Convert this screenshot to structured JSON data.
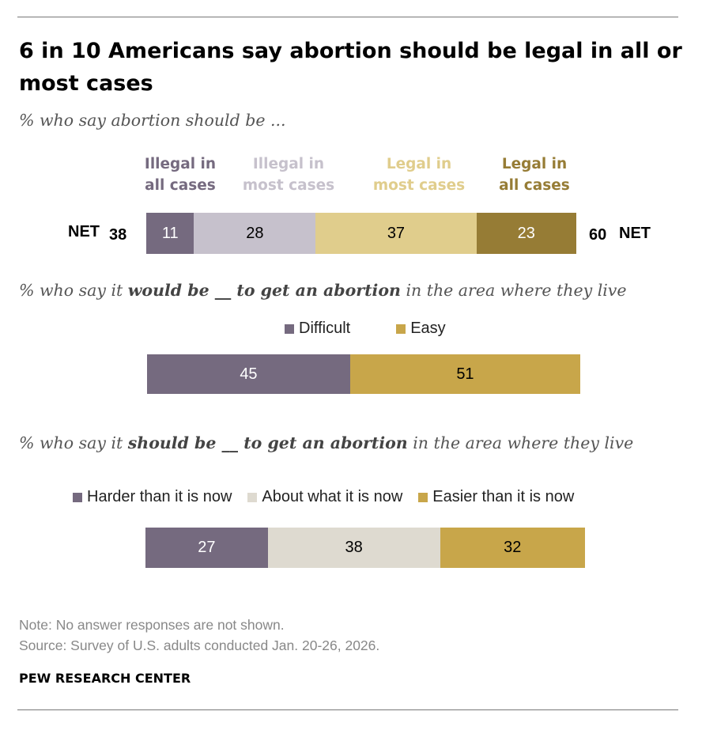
{
  "title": "6 in 10 Americans say abortion should be legal in all or most cases",
  "chart_data": [
    {
      "type": "bar",
      "subtitle": "% who say abortion should be ...",
      "categories": [
        "Illegal in all cases",
        "Illegal in most cases",
        "Legal in most cases",
        "Legal in all cases"
      ],
      "category_lines": [
        [
          "Illegal in",
          "all cases"
        ],
        [
          "Illegal in",
          "most cases"
        ],
        [
          "Legal in",
          "most cases"
        ],
        [
          "Legal in",
          "all cases"
        ]
      ],
      "values": [
        11,
        28,
        37,
        23
      ],
      "colors": [
        "#756a7f",
        "#c6c1cc",
        "#e0cd8c",
        "#967c35"
      ],
      "label_colors": [
        "#756a7f",
        "#c6c1cc",
        "#e0cd8c",
        "#967c35"
      ],
      "text_colors": [
        "#ffffff",
        "#000000",
        "#000000",
        "#ffffff"
      ],
      "net_left": {
        "label": "NET",
        "value": "38"
      },
      "net_right": {
        "value": "60",
        "label": "NET"
      }
    },
    {
      "type": "bar",
      "subtitle_parts": [
        "% who say it ",
        "would be __ to get an abortion",
        " in the area where they live"
      ],
      "categories": [
        "Difficult",
        "Easy"
      ],
      "values": [
        45,
        51
      ],
      "colors": [
        "#756a7f",
        "#c8a64a"
      ],
      "text_colors": [
        "#ffffff",
        "#000000"
      ]
    },
    {
      "type": "bar",
      "subtitle_parts": [
        "% who say it ",
        "should be __ to get an abortion",
        " in the area where they live"
      ],
      "categories": [
        "Harder than it is now",
        "About what it is now",
        "Easier than it is now"
      ],
      "values": [
        27,
        38,
        32
      ],
      "colors": [
        "#756a7f",
        "#dedad0",
        "#c8a64a"
      ],
      "text_colors": [
        "#ffffff",
        "#000000",
        "#000000"
      ]
    }
  ],
  "note": "Note: No answer responses are not shown.",
  "source": "Source: Survey of U.S. adults conducted Jan. 20-26, 2026.",
  "brand": "PEW RESEARCH CENTER"
}
